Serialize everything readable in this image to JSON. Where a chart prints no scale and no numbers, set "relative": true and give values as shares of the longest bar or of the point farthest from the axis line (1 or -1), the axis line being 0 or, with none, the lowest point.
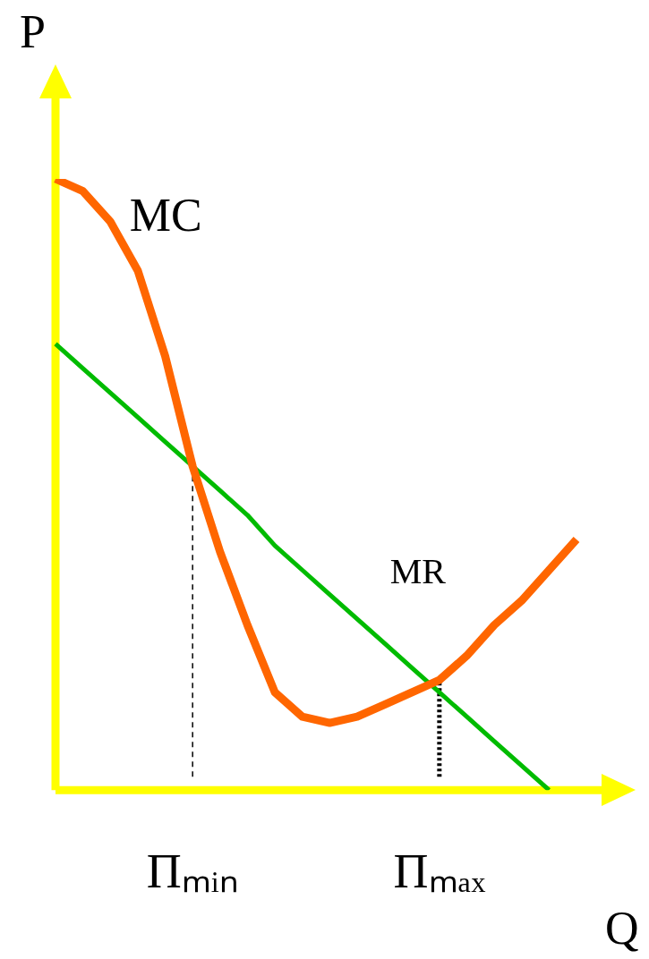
{
  "chart_data": {
    "type": "line",
    "relative": true,
    "xlabel": "Q",
    "ylabel": "P",
    "categories": [
      null,
      null,
      null,
      null,
      null,
      "Πₘᵢₙ",
      null,
      null,
      null,
      null,
      null,
      null,
      null,
      null,
      "Πₘₐₓ",
      null,
      null,
      null,
      null,
      null
    ],
    "series": [
      {
        "name": "MC",
        "color": "#ff6600",
        "values": [
          1.0,
          0.98,
          0.93,
          0.85,
          0.71,
          0.53,
          0.39,
          0.27,
          0.16,
          0.12,
          0.11,
          0.12,
          0.14,
          0.16,
          0.18,
          0.22,
          0.27,
          0.31,
          0.36,
          0.41
        ]
      },
      {
        "name": "MR",
        "color": "#00bb00",
        "values": [
          0.73,
          0.69,
          0.65,
          0.61,
          0.57,
          0.53,
          0.49,
          0.45,
          0.4,
          0.36,
          0.32,
          0.28,
          0.24,
          0.2,
          0.16,
          0.12,
          0.08,
          0.04,
          0.0,
          null
        ]
      }
    ],
    "ref_lines": [
      {
        "axis": "x",
        "value": "Πₘᵢₙ",
        "line_style": "dashed",
        "color": "#000000"
      },
      {
        "axis": "x",
        "value": "Πₘₐₓ",
        "line_style": "dotted",
        "color": "#000000"
      }
    ],
    "legend": false,
    "grid": false,
    "marker": "none",
    "line_style": "solid"
  }
}
